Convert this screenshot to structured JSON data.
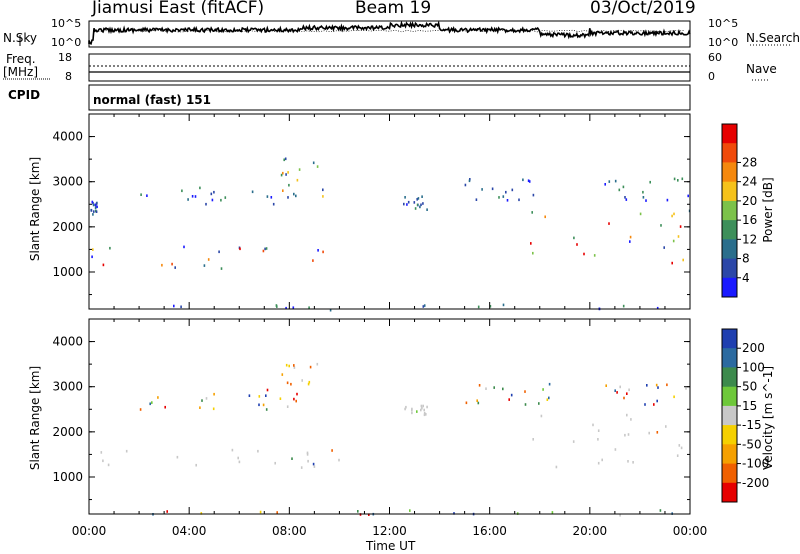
{
  "header": {
    "station": "Jiamusi East (fitACF)",
    "beam": "Beam 19",
    "date": "03/Oct/2019"
  },
  "noise_panel": {
    "left_label": "N.Sky",
    "right_label": "N.Search",
    "tick_top": "10^5",
    "tick_bottom": "10^0"
  },
  "freq_panel": {
    "left_label_1": "Freq.",
    "left_label_2": "[MHz]",
    "tick_top_left": "18",
    "tick_bottom_left": "8",
    "tick_top_right": "60",
    "tick_bottom_right": "0",
    "right_label": "Nave"
  },
  "cpid": {
    "label": "CPID",
    "value": "normal (fast) 151"
  },
  "colors": {
    "power_scale": [
      "#1a1aff",
      "#2b47a8",
      "#2a6e8c",
      "#3d8f5a",
      "#7cc24a",
      "#f5c21b",
      "#f5880d",
      "#f04a0a",
      "#e60000"
    ],
    "velocity_scale": [
      "#1f3fb0",
      "#2b6aa0",
      "#3c8a4c",
      "#6ec83a",
      "#c8c8c8",
      "#f5d000",
      "#f5a000",
      "#f06000",
      "#e60000"
    ]
  },
  "chart_data": [
    {
      "type": "heatmap",
      "title": "",
      "xlabel": "Time UT",
      "ylabel": "Slant Range [km]",
      "x_ticks": [
        "00:00",
        "04:00",
        "08:00",
        "12:00",
        "16:00",
        "20:00",
        "00:00"
      ],
      "y_ticks": [
        "1000",
        "2000",
        "3000",
        "4000"
      ],
      "ylim": [
        180,
        4500
      ],
      "colorbar": {
        "label": "Power [dB]",
        "ticks": [
          "4",
          "8",
          "12",
          "16",
          "20",
          "24",
          "28"
        ],
        "range": [
          0,
          30
        ]
      },
      "echo_regions": [
        {
          "t_start": 0.0,
          "t_end": 10.2,
          "range_low": 1100,
          "range_high": 1650,
          "level": "high"
        },
        {
          "t_start": 0.0,
          "t_end": 0.3,
          "range_low": 2300,
          "range_high": 2600,
          "level": "low"
        },
        {
          "t_start": 2.0,
          "t_end": 8.0,
          "range_low": 2500,
          "range_high": 3000,
          "level": "low"
        },
        {
          "t_start": 7.5,
          "t_end": 9.4,
          "range_low": 2700,
          "range_high": 3550,
          "level": "mid"
        },
        {
          "t_start": 12.5,
          "t_end": 13.5,
          "range_low": 2400,
          "range_high": 2700,
          "level": "low"
        },
        {
          "t_start": 15.0,
          "t_end": 18.5,
          "range_low": 2600,
          "range_high": 3100,
          "level": "low"
        },
        {
          "t_start": 17.5,
          "t_end": 24.0,
          "range_low": 1200,
          "range_high": 2400,
          "level": "high"
        },
        {
          "t_start": 20.5,
          "t_end": 24.0,
          "range_low": 2600,
          "range_high": 3100,
          "level": "low"
        },
        {
          "t_start": 0.0,
          "t_end": 24.0,
          "range_low": 180,
          "range_high": 300,
          "level": "low"
        }
      ]
    },
    {
      "type": "heatmap",
      "title": "",
      "xlabel": "Time UT",
      "ylabel": "Slant Range [km]",
      "x_ticks": [
        "00:00",
        "04:00",
        "08:00",
        "12:00",
        "16:00",
        "20:00",
        "00:00"
      ],
      "y_ticks": [
        "1000",
        "2000",
        "3000",
        "4000"
      ],
      "ylim": [
        180,
        4500
      ],
      "colorbar": {
        "label": "Velocity [m s^-1]",
        "ticks": [
          "200",
          "100",
          "50",
          "15",
          "-15",
          "-50",
          "-100",
          "-200"
        ],
        "range": [
          -250,
          250
        ]
      },
      "echo_regions": [
        {
          "t_start": 0.0,
          "t_end": 10.2,
          "range_low": 1100,
          "range_high": 1650,
          "level": "ground"
        },
        {
          "t_start": 7.5,
          "t_end": 9.4,
          "range_low": 2700,
          "range_high": 3550,
          "level": "negative"
        },
        {
          "t_start": 2.0,
          "t_end": 8.0,
          "range_low": 2500,
          "range_high": 3000,
          "level": "mixed"
        },
        {
          "t_start": 12.5,
          "t_end": 13.5,
          "range_low": 2400,
          "range_high": 2700,
          "level": "ground"
        },
        {
          "t_start": 15.0,
          "t_end": 18.5,
          "range_low": 2600,
          "range_high": 3100,
          "level": "mixed"
        },
        {
          "t_start": 17.5,
          "t_end": 24.0,
          "range_low": 1200,
          "range_high": 2400,
          "level": "ground"
        },
        {
          "t_start": 20.5,
          "t_end": 24.0,
          "range_low": 2600,
          "range_high": 3100,
          "level": "mixed"
        },
        {
          "t_start": 0.0,
          "t_end": 24.0,
          "range_low": 180,
          "range_high": 300,
          "level": "mixed"
        }
      ]
    }
  ]
}
